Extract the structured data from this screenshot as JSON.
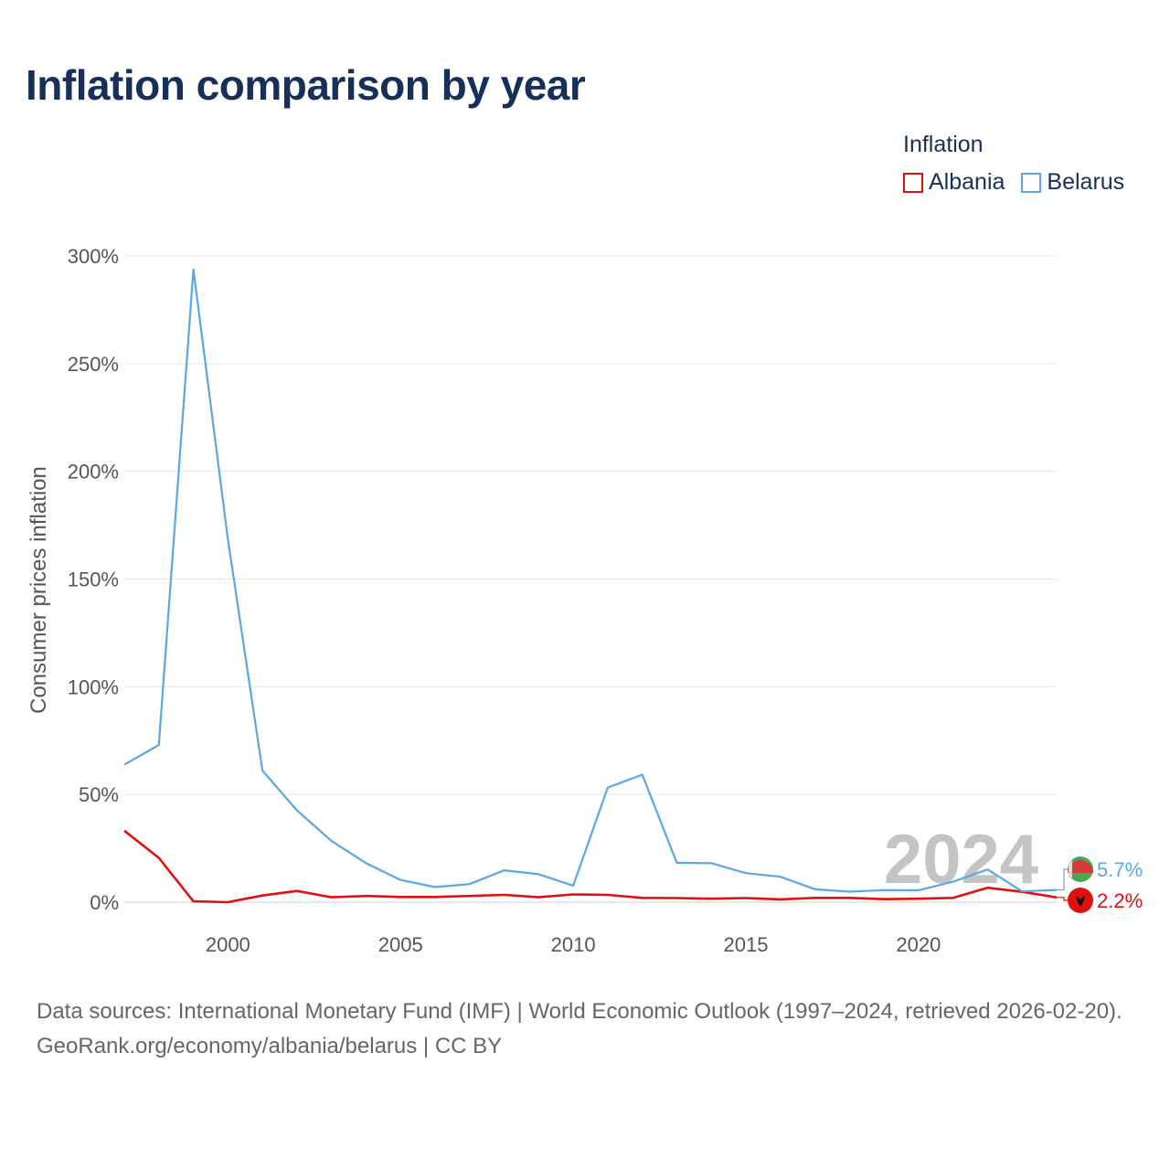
{
  "title": "Inflation comparison by year",
  "legend": {
    "title": "Inflation",
    "items": [
      {
        "label": "Albania",
        "color": "#e01010"
      },
      {
        "label": "Belarus",
        "color": "#5aa7e6"
      }
    ]
  },
  "chart_data": {
    "type": "line",
    "title": "Inflation comparison by year",
    "xlabel": "",
    "ylabel": "Consumer prices inflation",
    "xlim": [
      1997,
      2024
    ],
    "ylim": [
      0,
      300
    ],
    "x_ticks": [
      2000,
      2005,
      2010,
      2015,
      2020
    ],
    "y_ticks": [
      {
        "value": 0,
        "label": "0%"
      },
      {
        "value": 50,
        "label": "50%"
      },
      {
        "value": 100,
        "label": "100%"
      },
      {
        "value": 150,
        "label": "150%"
      },
      {
        "value": 200,
        "label": "200%"
      },
      {
        "value": 250,
        "label": "250%"
      },
      {
        "value": 300,
        "label": "300%"
      }
    ],
    "x": [
      1997,
      1998,
      1999,
      2000,
      2001,
      2002,
      2003,
      2004,
      2005,
      2006,
      2007,
      2008,
      2009,
      2010,
      2011,
      2012,
      2013,
      2014,
      2015,
      2016,
      2017,
      2018,
      2019,
      2020,
      2021,
      2022,
      2023,
      2024
    ],
    "series": [
      {
        "name": "Albania",
        "color": "#e01010",
        "end_label": "2.2%",
        "values": [
          33.2,
          20.6,
          0.4,
          0.0,
          3.1,
          5.2,
          2.3,
          2.9,
          2.4,
          2.4,
          2.9,
          3.4,
          2.3,
          3.6,
          3.4,
          2.0,
          1.9,
          1.6,
          1.9,
          1.3,
          2.0,
          2.0,
          1.4,
          1.6,
          2.0,
          6.7,
          4.8,
          2.2
        ]
      },
      {
        "name": "Belarus",
        "color": "#5aa7e6",
        "end_label": "5.7%",
        "values": [
          63.8,
          73.0,
          293.7,
          168.6,
          61.1,
          42.6,
          28.4,
          18.1,
          10.3,
          7.0,
          8.4,
          14.8,
          13.0,
          7.7,
          53.2,
          59.2,
          18.3,
          18.1,
          13.5,
          11.8,
          6.0,
          4.9,
          5.6,
          5.5,
          9.5,
          15.2,
          5.0,
          5.7
        ]
      }
    ],
    "watermark_year": "2024",
    "grid": true
  },
  "footer": {
    "sources": "Data sources: International Monetary Fund (IMF) | World Economic Outlook (1997–2024, retrieved 2026-02-20).",
    "credit": "GeoRank.org/economy/albania/belarus | CC BY"
  }
}
